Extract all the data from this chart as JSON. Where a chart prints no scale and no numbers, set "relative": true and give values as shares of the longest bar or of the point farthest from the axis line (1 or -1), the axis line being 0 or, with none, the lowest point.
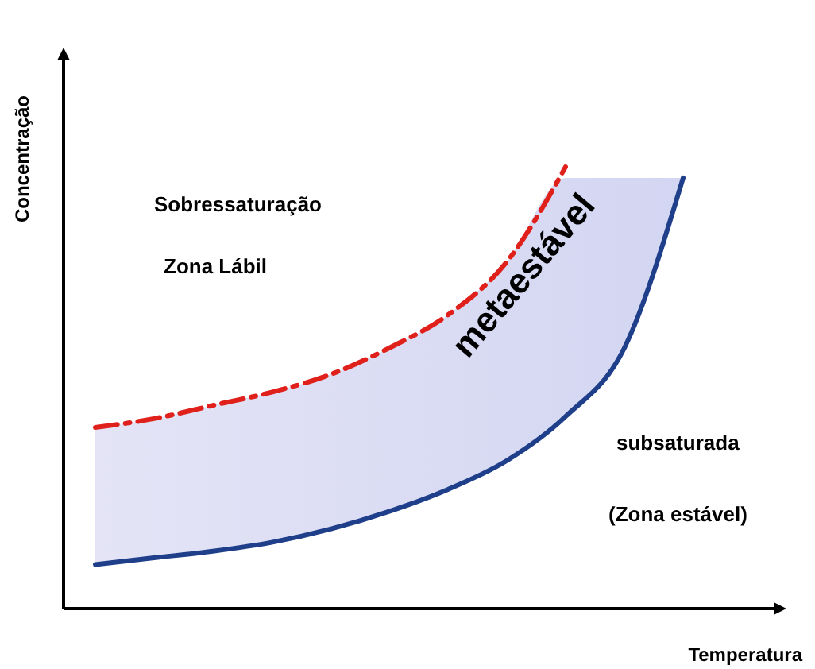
{
  "chart_data": {
    "type": "line",
    "relative": true,
    "xlabel": "Temperatura",
    "ylabel": "Concentração",
    "categories": [
      null,
      null,
      null,
      null,
      null,
      null,
      null,
      null,
      null,
      null,
      null
    ],
    "series": [
      {
        "color": "#1f3f8a",
        "line_style": "solid",
        "values": [
          0.1,
          0.115,
          0.13,
          0.15,
          0.18,
          0.22,
          0.27,
          0.335,
          0.435,
          0.59,
          0.975
        ],
        "lower": [
          0.1,
          0.115,
          0.13,
          0.15,
          0.18,
          0.22,
          0.27,
          0.335,
          0.435,
          0.59,
          0.975
        ],
        "upper": [
          0.41,
          0.43,
          0.46,
          0.49,
          0.53,
          0.59,
          0.665,
          0.785,
          0.975,
          0.975,
          0.975
        ]
      },
      {
        "color": "#e0201b",
        "line_style": "dashed",
        "values": [
          0.41,
          0.43,
          0.46,
          0.49,
          0.53,
          0.59,
          0.665,
          0.785,
          1.0,
          null,
          null
        ]
      }
    ],
    "annotations": [
      "Sobressaturação",
      "Zona Lábil",
      "metaestável",
      "subsaturada",
      "(Zona estável)"
    ],
    "marker": "none"
  }
}
